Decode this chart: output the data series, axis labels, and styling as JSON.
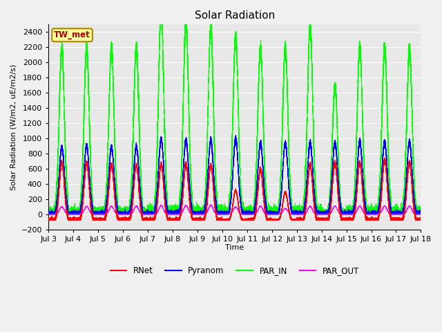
{
  "title": "Solar Radiation",
  "ylabel": "Solar Radiation (W/m2, uE/m2/s)",
  "xlabel": "Time",
  "ylim": [
    -200,
    2500
  ],
  "yticks": [
    -200,
    0,
    200,
    400,
    600,
    800,
    1000,
    1200,
    1400,
    1600,
    1800,
    2000,
    2200,
    2400
  ],
  "xlim_start": 3.0,
  "xlim_end": 18.0,
  "xtick_positions": [
    3,
    4,
    5,
    6,
    7,
    8,
    9,
    10,
    11,
    12,
    13,
    14,
    15,
    16,
    17,
    18
  ],
  "xtick_labels": [
    "Jul 3",
    "Jul 4",
    "Jul 5",
    "Jul 6",
    "Jul 7",
    "Jul 8",
    "Jul 9",
    "Jul 10",
    "Jul 11",
    "Jul 12",
    "Jul 13",
    "Jul 14",
    "Jul 15",
    "Jul 16",
    "Jul 17",
    "Jul 18"
  ],
  "legend_labels": [
    "RNet",
    "Pyranom",
    "PAR_IN",
    "PAR_OUT"
  ],
  "legend_colors": [
    "#ff0000",
    "#0000ff",
    "#00ff00",
    "#ff00ff"
  ],
  "station_label": "TW_met",
  "station_box_facecolor": "#ffff99",
  "station_box_edgecolor": "#aa8800",
  "plot_bg_color": "#e8e8e8",
  "fig_bg_color": "#f0f0f0",
  "grid_color": "#ffffff",
  "colors": {
    "RNet": "#ff0000",
    "Pyranom": "#0000ff",
    "PAR_IN": "#00ff00",
    "PAR_OUT": "#ff00ff"
  },
  "day_start": 3,
  "day_profiles": [
    [
      0,
      760,
      880,
      2180,
      100
    ],
    [
      1,
      760,
      900,
      2190,
      105
    ],
    [
      2,
      730,
      880,
      2180,
      105
    ],
    [
      3,
      730,
      890,
      2200,
      108
    ],
    [
      4,
      740,
      990,
      2700,
      115
    ],
    [
      5,
      740,
      970,
      2560,
      115
    ],
    [
      6,
      730,
      970,
      2460,
      120
    ],
    [
      7,
      390,
      990,
      2350,
      95
    ],
    [
      8,
      680,
      940,
      2190,
      105
    ],
    [
      9,
      370,
      930,
      2180,
      75
    ],
    [
      10,
      730,
      940,
      2480,
      105
    ],
    [
      11,
      760,
      940,
      1680,
      108
    ],
    [
      12,
      760,
      950,
      2200,
      108
    ],
    [
      13,
      790,
      950,
      2200,
      108
    ],
    [
      14,
      760,
      950,
      2180,
      108
    ]
  ]
}
